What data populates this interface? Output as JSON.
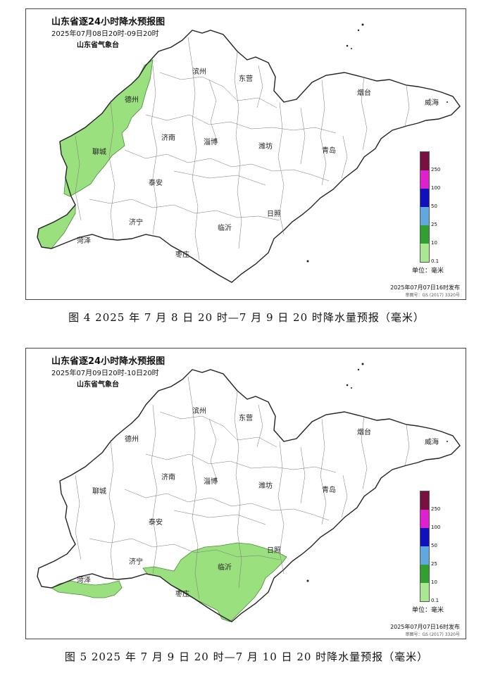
{
  "panels": [
    {
      "title": "山东省逐24小时降水预报图",
      "period": "2025年07月08日20时-09日20时",
      "issuer": "山东省气象台",
      "issue_time": "2025年07月07日16时发布",
      "approval": "审图号：GS (2017) 3320号",
      "caption": "图 4 2025 年 7 月 8 日 20 时—7 月 9 日 20 时降水量预报（毫米）",
      "rain_regions": [
        "德州",
        "聊城",
        "菏泽"
      ],
      "rain_level": "0.1-10"
    },
    {
      "title": "山东省逐24小时降水预报图",
      "period": "2025年07月09日20时-10日20时",
      "issuer": "山东省气象台",
      "issue_time": "2025年07月07日16时发布",
      "approval": "审图号：GS (2017) 3320号",
      "caption": "图 5 2025 年 7 月 9 日 20 时—7 月 10 日 20 时降水量预报（毫米）",
      "rain_regions": [
        "临沂",
        "枣庄",
        "日照",
        "菏泽"
      ],
      "rain_level": "0.1-10"
    }
  ],
  "cities": [
    "滨州",
    "东营",
    "烟台",
    "威海",
    "德州",
    "济南",
    "淄博",
    "潍坊",
    "青岛",
    "聊城",
    "泰安",
    "日照",
    "临沂",
    "济宁",
    "菏泽",
    "枣庄"
  ],
  "legend": {
    "unit": "单位：毫米",
    "ticks": [
      "250",
      "100",
      "50",
      "25",
      "10",
      "0.1"
    ],
    "colors": [
      "#7a1040",
      "#e020d0",
      "#1010c0",
      "#60a8e0",
      "#30a030",
      "#a8e890"
    ]
  },
  "colors": {
    "rain_light": "#9be07f",
    "outline": "#222222",
    "county_line": "#777777"
  }
}
